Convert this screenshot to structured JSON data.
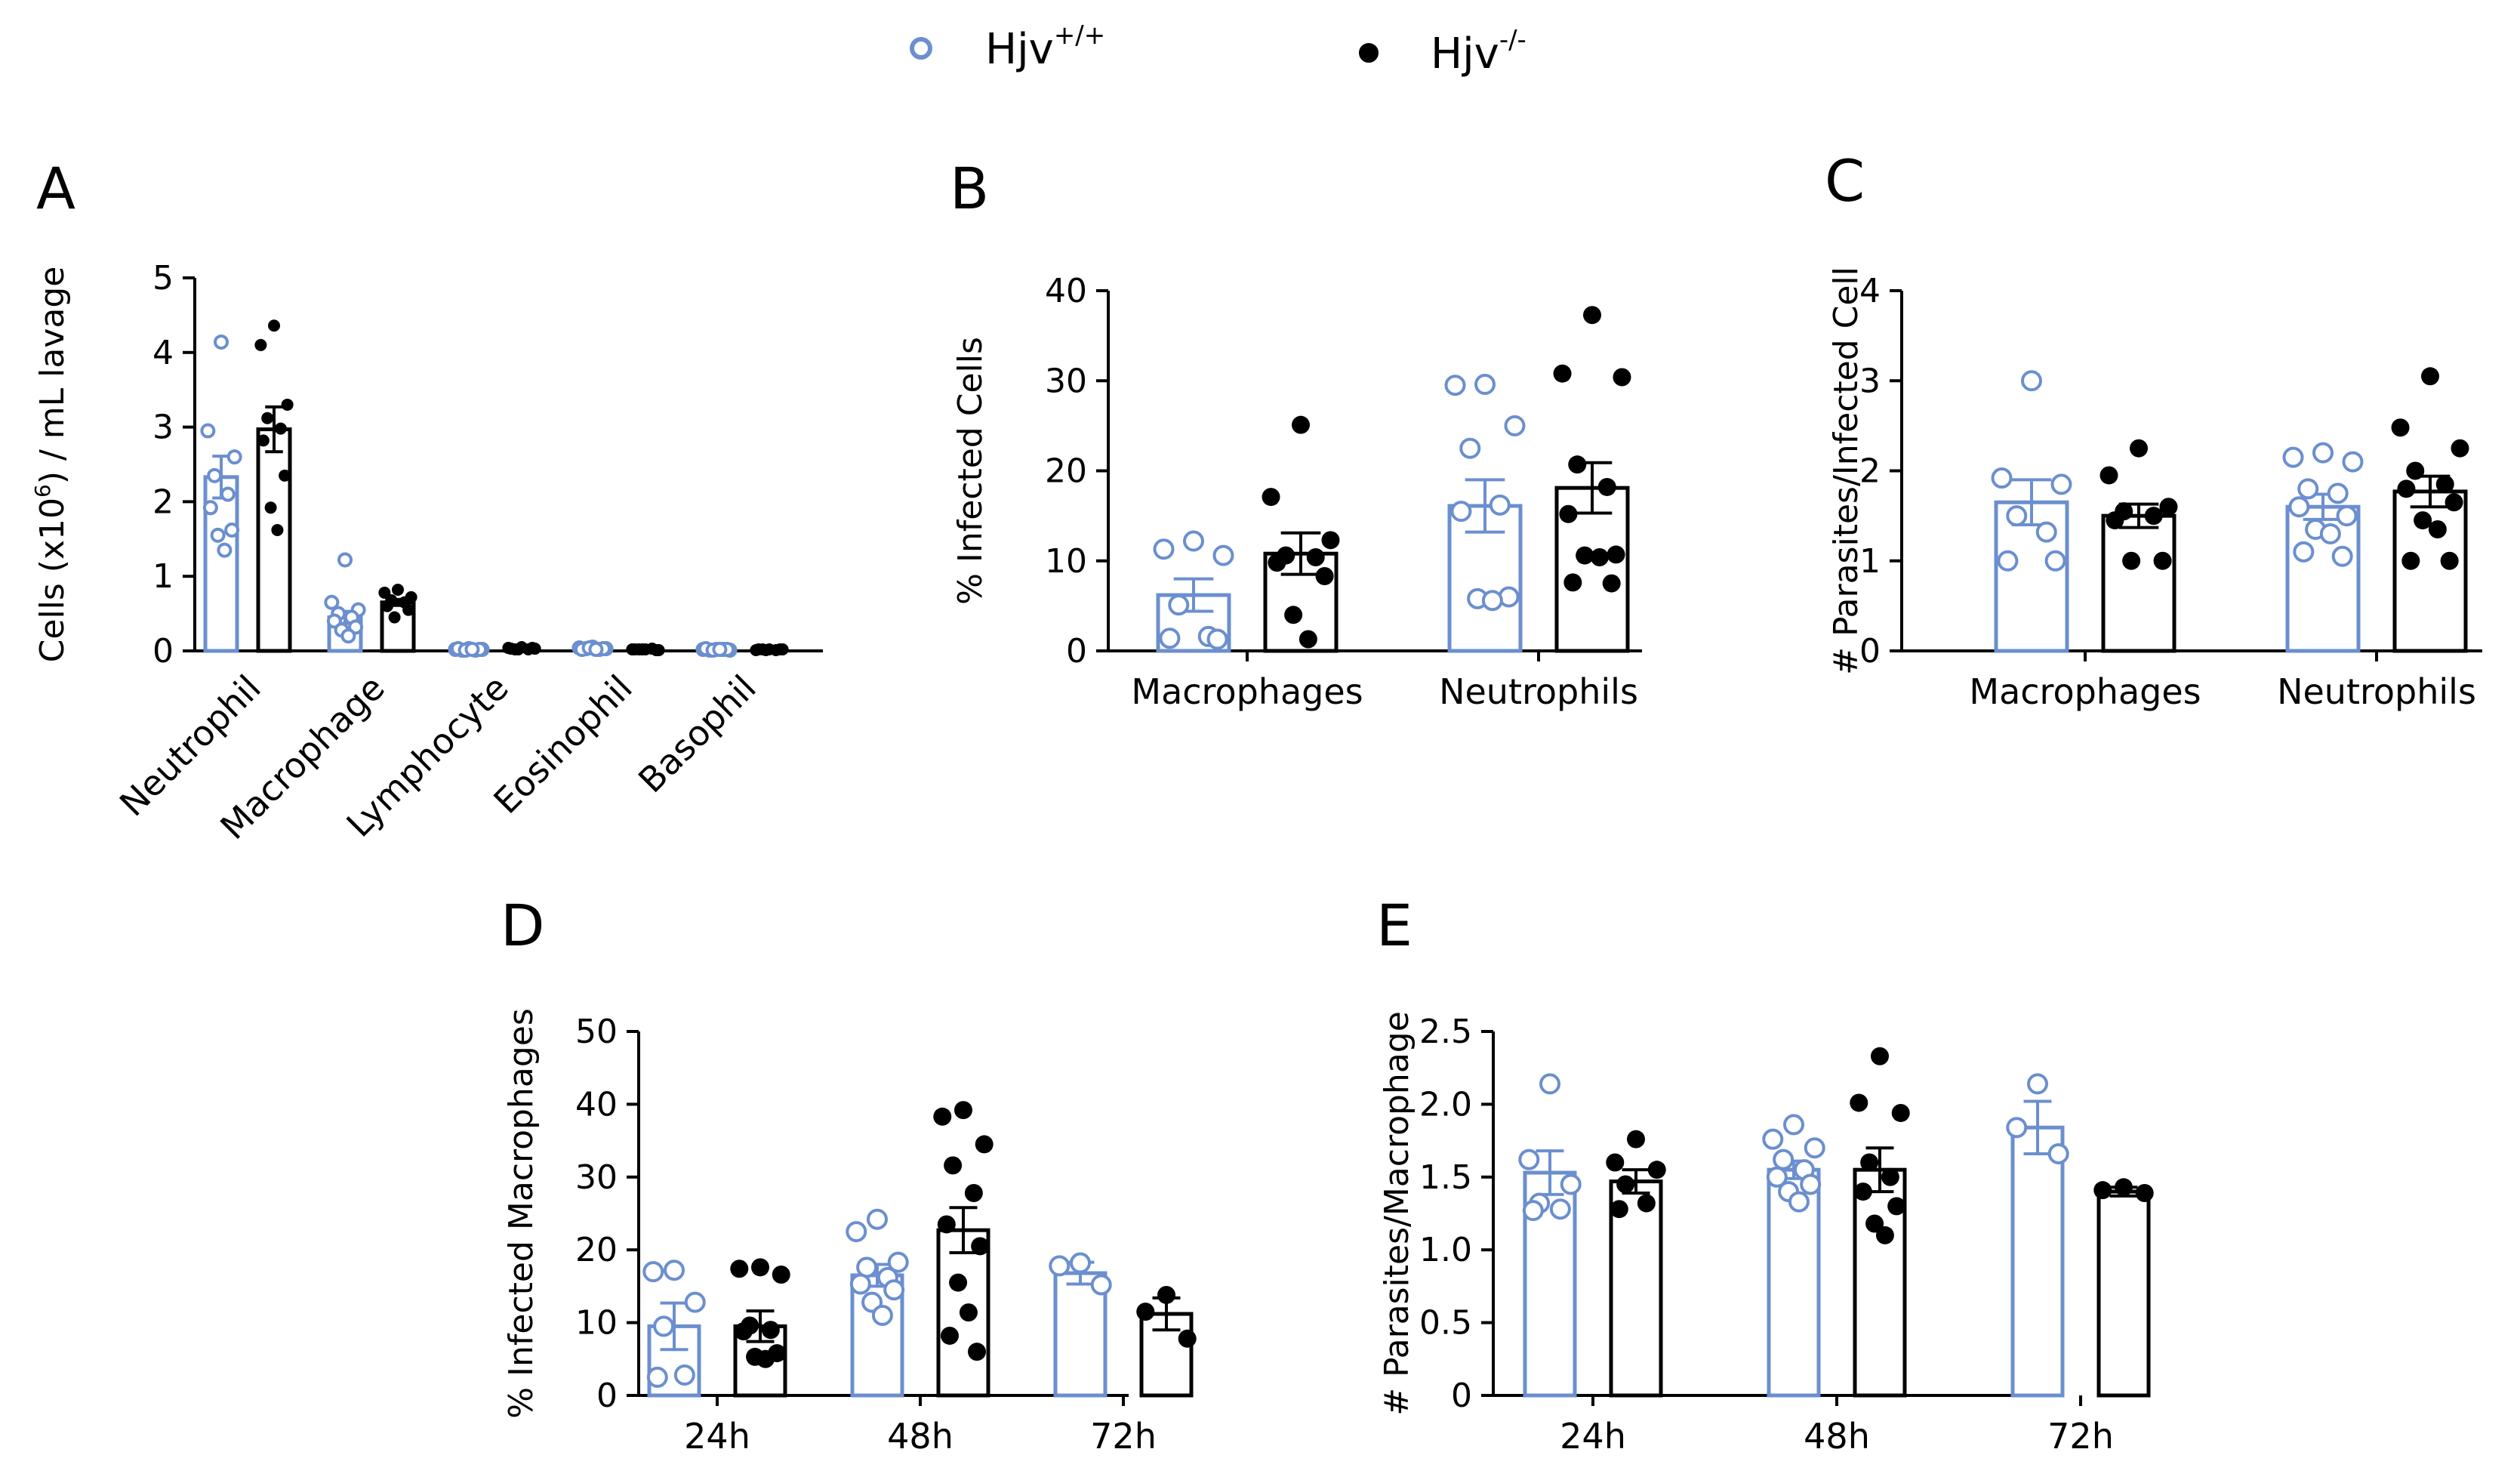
{
  "legend": {
    "wt": {
      "base": "Hjv",
      "sup": "+/+"
    },
    "ko": {
      "base": "Hjv",
      "sup": "-/-"
    }
  },
  "colors": {
    "wt": "#6b8fcf",
    "ko": "#000000"
  },
  "chart_data": [
    {
      "id": "A",
      "letter": "A",
      "type": "bar",
      "ylabel": "Cells (x10^6) / mL lavage",
      "ylabel_base": "Cells (x10",
      "ylabel_sup": "6",
      "ylabel_rest": ") / mL lavage",
      "ylim": [
        0,
        5
      ],
      "yticks": [
        "0",
        "1",
        "2",
        "3",
        "4",
        "5"
      ],
      "categories": [
        "Neutrophil",
        "Macrophage",
        "Lymphocyte",
        "Eosinophil",
        "Basophil"
      ],
      "series": [
        {
          "name": "Hjv+/+",
          "values": [
            2.33,
            0.45,
            0.02,
            0.03,
            0.02
          ],
          "sem": [
            0.28,
            0.08,
            0.005,
            0.005,
            0.005
          ],
          "points": [
            [
              4.14,
              2.95,
              2.6,
              2.35,
              2.1,
              1.92,
              1.62,
              1.55,
              1.35
            ],
            [
              1.22,
              0.65,
              0.55,
              0.5,
              0.45,
              0.4,
              0.32,
              0.28,
              0.2
            ],
            [
              0.03,
              0.02,
              0.02,
              0.01,
              0.01,
              0.03,
              0.02,
              0.01,
              0.02
            ],
            [
              0.05,
              0.04,
              0.03,
              0.03,
              0.02,
              0.02,
              0.03,
              0.04,
              0.02
            ],
            [
              0.02,
              0.02,
              0.01,
              0.01,
              0.02,
              0.03,
              0.02,
              0.01,
              0.02
            ]
          ]
        },
        {
          "name": "Hjv-/-",
          "values": [
            2.97,
            0.65,
            0.03,
            0.02,
            0.02
          ],
          "sem": [
            0.3,
            0.04,
            0.005,
            0.005,
            0.005
          ],
          "points": [
            [
              4.36,
              4.1,
              3.3,
              3.12,
              2.98,
              2.82,
              2.35,
              1.92,
              1.62
            ],
            [
              0.82,
              0.78,
              0.72,
              0.68,
              0.65,
              0.6,
              0.55,
              0.45
            ],
            [
              0.05,
              0.04,
              0.03,
              0.02,
              0.02,
              0.03,
              0.04,
              0.02
            ],
            [
              0.02,
              0.02,
              0.01,
              0.02,
              0.03,
              0.02,
              0.01,
              0.02
            ],
            [
              0.02,
              0.01,
              0.02,
              0.02,
              0.01,
              0.02,
              0.02,
              0.01
            ]
          ]
        }
      ]
    },
    {
      "id": "B",
      "letter": "B",
      "type": "bar",
      "ylabel": "% Infected Cells",
      "ylim": [
        0,
        40
      ],
      "yticks": [
        "0",
        "10",
        "20",
        "30",
        "40"
      ],
      "categories": [
        "Macrophages",
        "Neutrophils"
      ],
      "series": [
        {
          "name": "Hjv+/+",
          "values": [
            6.2,
            16.1
          ],
          "sem": [
            1.8,
            2.9
          ],
          "points": [
            [
              12.2,
              11.3,
              10.6,
              5.1,
              1.6,
              1.4,
              1.3
            ],
            [
              29.6,
              29.5,
              25.0,
              22.5,
              16.2,
              15.5,
              6.0,
              5.8,
              5.6
            ]
          ]
        },
        {
          "name": "Hjv-/-",
          "values": [
            10.8,
            18.1
          ],
          "sem": [
            2.3,
            2.8
          ],
          "points": [
            [
              25.1,
              17.1,
              12.3,
              10.6,
              10.4,
              9.8,
              8.3,
              4.0,
              1.3
            ],
            [
              37.3,
              30.8,
              30.4,
              20.7,
              18.2,
              15.2,
              10.7,
              10.6,
              10.4,
              7.6,
              7.5
            ]
          ]
        }
      ]
    },
    {
      "id": "C",
      "letter": "C",
      "type": "bar",
      "ylabel": "# Parasites/Infected Cell",
      "ylim": [
        0,
        4
      ],
      "yticks": [
        "0",
        "1",
        "2",
        "3",
        "4"
      ],
      "categories": [
        "Macrophages",
        "Neutrophils"
      ],
      "series": [
        {
          "name": "Hjv+/+",
          "values": [
            1.65,
            1.6
          ],
          "sem": [
            0.25,
            0.14
          ],
          "points": [
            [
              3.0,
              1.92,
              1.85,
              1.5,
              1.32,
              1.0,
              1.0
            ],
            [
              2.2,
              2.15,
              2.1,
              1.8,
              1.75,
              1.6,
              1.5,
              1.35,
              1.3,
              1.1,
              1.05
            ]
          ]
        },
        {
          "name": "Hjv-/-",
          "values": [
            1.5,
            1.77
          ],
          "sem": [
            0.13,
            0.17
          ],
          "points": [
            [
              2.25,
              1.95,
              1.6,
              1.55,
              1.5,
              1.45,
              1.0,
              1.0
            ],
            [
              3.05,
              2.48,
              2.25,
              2.0,
              1.85,
              1.8,
              1.65,
              1.45,
              1.35,
              1.0,
              1.0
            ]
          ]
        }
      ]
    },
    {
      "id": "D",
      "letter": "D",
      "type": "bar",
      "ylabel": "% Infected Macrophages",
      "ylim": [
        0,
        50
      ],
      "yticks": [
        "0",
        "10",
        "20",
        "30",
        "40",
        "50"
      ],
      "categories": [
        "24h",
        "48h",
        "72h"
      ],
      "series": [
        {
          "name": "Hjv+/+",
          "values": [
            9.5,
            16.5,
            16.8
          ],
          "sem": [
            3.2,
            1.5,
            1.5
          ],
          "points": [
            [
              17.2,
              17.0,
              12.8,
              9.5,
              2.8,
              2.5
            ],
            [
              24.2,
              22.5,
              18.3,
              17.6,
              16.2,
              15.3,
              14.5,
              12.8,
              11.0
            ],
            [
              18.2,
              17.8,
              15.2
            ]
          ]
        },
        {
          "name": "Hjv-/-",
          "values": [
            9.5,
            22.7,
            11.2
          ],
          "sem": [
            2.1,
            3.1,
            2.2
          ],
          "points": [
            [
              17.6,
              17.4,
              16.6,
              9.6,
              9.0,
              8.8,
              5.8,
              5.3,
              5.0
            ],
            [
              39.2,
              38.3,
              34.5,
              31.6,
              27.8,
              23.5,
              20.5,
              15.5,
              11.4,
              8.2,
              6.0
            ],
            [
              13.8,
              11.5,
              7.8
            ]
          ]
        }
      ]
    },
    {
      "id": "E",
      "letter": "E",
      "type": "bar",
      "ylabel": "# Parasites/Macrophage",
      "ylim": [
        0,
        2.5
      ],
      "yticks": [
        "0",
        "0.5",
        "1.0",
        "1.5",
        "2.0",
        "2.5"
      ],
      "categories": [
        "24h",
        "48h",
        "72h"
      ],
      "series": [
        {
          "name": "Hjv+/+",
          "values": [
            1.53,
            1.55,
            1.84
          ],
          "sem": [
            0.15,
            0.06,
            0.18
          ],
          "points": [
            [
              2.14,
              1.62,
              1.45,
              1.32,
              1.28,
              1.27
            ],
            [
              1.86,
              1.76,
              1.7,
              1.62,
              1.55,
              1.5,
              1.45,
              1.4,
              1.33
            ],
            [
              2.14,
              1.84,
              1.66
            ]
          ]
        },
        {
          "name": "Hjv-/-",
          "values": [
            1.47,
            1.55,
            1.4
          ],
          "sem": [
            0.08,
            0.15,
            0.03
          ],
          "points": [
            [
              1.76,
              1.6,
              1.55,
              1.45,
              1.32,
              1.28
            ],
            [
              2.33,
              2.01,
              1.94,
              1.6,
              1.5,
              1.4,
              1.3,
              1.18,
              1.1
            ],
            [
              1.43,
              1.41,
              1.39
            ]
          ]
        }
      ]
    }
  ]
}
